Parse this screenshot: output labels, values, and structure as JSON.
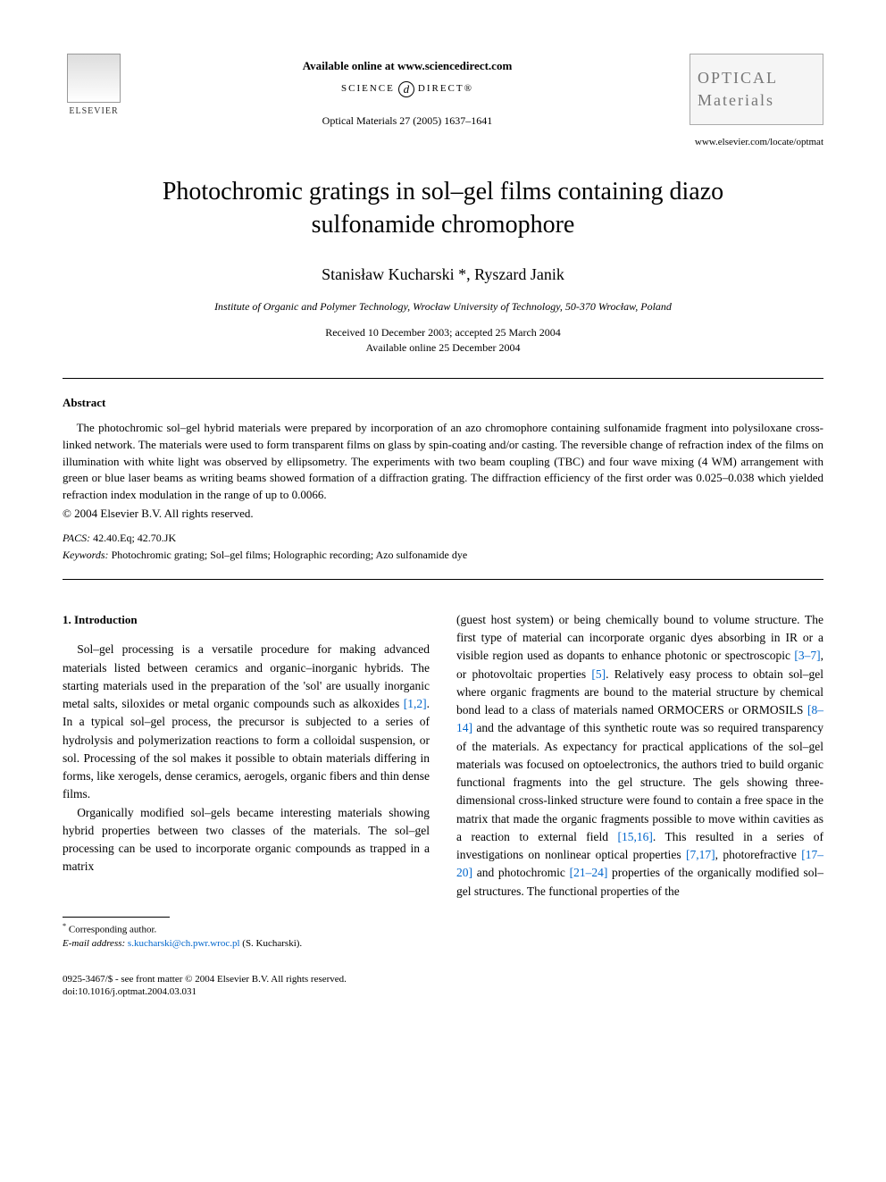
{
  "header": {
    "elsevier_label": "ELSEVIER",
    "available_online": "Available online at www.sciencedirect.com",
    "science_left": "SCIENCE",
    "science_right": "DIRECT®",
    "sd_d": "d",
    "citation": "Optical Materials 27 (2005) 1637–1641",
    "journal_line1": "OPTICAL",
    "journal_line2": "Materials",
    "journal_url": "www.elsevier.com/locate/optmat"
  },
  "title": "Photochromic gratings in sol–gel films containing diazo sulfonamide chromophore",
  "authors": "Stanisław Kucharski *, Ryszard Janik",
  "affiliation": "Institute of Organic and Polymer Technology, Wrocław University of Technology, 50-370 Wrocław, Poland",
  "dates_line1": "Received 10 December 2003; accepted 25 March 2004",
  "dates_line2": "Available online 25 December 2004",
  "abstract": {
    "heading": "Abstract",
    "text": "The photochromic sol–gel hybrid materials were prepared by incorporation of an azo chromophore containing sulfonamide fragment into polysiloxane cross-linked network. The materials were used to form transparent films on glass by spin-coating and/or casting. The reversible change of refraction index of the films on illumination with white light was observed by ellipsometry. The experiments with two beam coupling (TBC) and four wave mixing (4 WM) arrangement with green or blue laser beams as writing beams showed formation of a diffraction grating. The diffraction efficiency of the first order was 0.025–0.038 which yielded refraction index modulation in the range of up to 0.0066.",
    "copyright": "© 2004 Elsevier B.V. All rights reserved."
  },
  "pacs": {
    "label": "PACS:",
    "value": " 42.40.Eq; 42.70.JK"
  },
  "keywords": {
    "label": "Keywords:",
    "value": " Photochromic grating; Sol–gel films; Holographic recording; Azo sulfonamide dye"
  },
  "body": {
    "section_heading": "1. Introduction",
    "left_p1a": "Sol–gel processing is a versatile procedure for making advanced materials listed between ceramics and organic–inorganic hybrids. The starting materials used in the preparation of the 'sol' are usually inorganic metal salts, siloxides or metal organic compounds such as alkoxides ",
    "left_ref1": "[1,2]",
    "left_p1b": ". In a typical sol–gel process, the precursor is subjected to a series of hydrolysis and polymerization reactions to form a colloidal suspension, or sol. Processing of the sol makes it possible to obtain materials differing in forms, like xerogels, dense ceramics, aerogels, organic fibers and thin dense films.",
    "left_p2": "Organically modified sol–gels became interesting materials showing hybrid properties between two classes of the materials. The sol–gel processing can be used to incorporate organic compounds as trapped in a matrix",
    "right_a": "(guest host system) or being chemically bound to volume structure. The first type of material can incorporate organic dyes absorbing in IR or a visible region used as dopants to enhance photonic or spectroscopic ",
    "right_ref1": "[3–7]",
    "right_b": ", or photovoltaic properties ",
    "right_ref2": "[5]",
    "right_c": ". Relatively easy process to obtain sol–gel where organic fragments are bound to the material structure by chemical bond lead to a class of materials named ORMOCERS or ORMOSILS ",
    "right_ref3": "[8–14]",
    "right_d": " and the advantage of this synthetic route was so required transparency of the materials. As expectancy for practical applications of the sol–gel materials was focused on optoelectronics, the authors tried to build organic functional fragments into the gel structure. The gels showing three-dimensional cross-linked structure were found to contain a free space in the matrix that made the organic fragments possible to move within cavities as a reaction to external field ",
    "right_ref4": "[15,16]",
    "right_e": ". This resulted in a series of investigations on nonlinear optical properties ",
    "right_ref5": "[7,17]",
    "right_f": ", photorefractive ",
    "right_ref6": "[17–20]",
    "right_g": " and photochromic ",
    "right_ref7": "[21–24]",
    "right_h": " properties of the organically modified sol–gel structures. The functional properties of the"
  },
  "footnote": {
    "corr": "Corresponding author.",
    "email_label": "E-mail address:",
    "email": "s.kucharski@ch.pwr.wroc.pl",
    "email_name": " (S. Kucharski)."
  },
  "bottom": {
    "line1": "0925-3467/$ - see front matter © 2004 Elsevier B.V. All rights reserved.",
    "line2": "doi:10.1016/j.optmat.2004.03.031"
  }
}
